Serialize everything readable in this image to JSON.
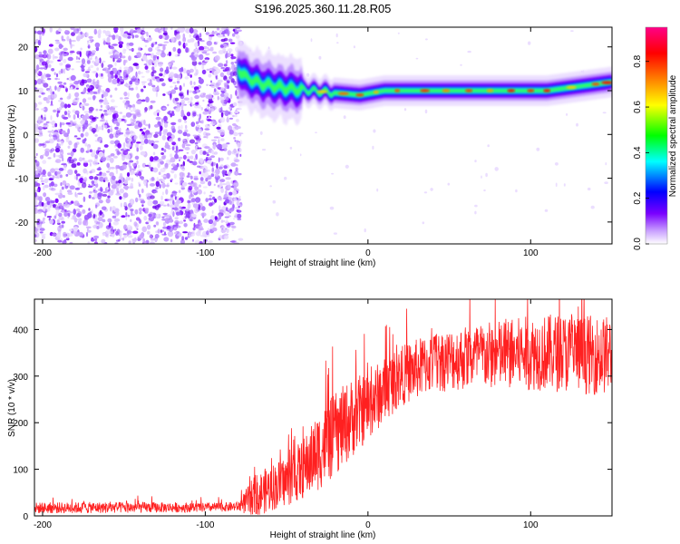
{
  "title": "S196.2025.360.11.28.R05",
  "chart_data": [
    {
      "type": "heatmap",
      "name": "spectrogram",
      "xlabel": "Height of straight line (km)",
      "ylabel": "Frequency (Hz)",
      "xlim": [
        -205,
        150
      ],
      "ylim": [
        -25,
        24.5
      ],
      "xticks": [
        -200,
        -100,
        0,
        100
      ],
      "xtick_labels": [
        "-200",
        "-100",
        "0",
        "100"
      ],
      "yticks": [
        20,
        10,
        0,
        -10,
        -20
      ],
      "ytick_labels": [
        "20",
        "10",
        "0",
        "-10",
        "-20"
      ],
      "noise_region": {
        "x_range": [
          -205,
          -78
        ],
        "description_values": "broadband low amplitude noise"
      },
      "signal_track": [
        {
          "x": -80,
          "f": 15
        },
        {
          "x": -75,
          "f": 13
        },
        {
          "x": -65,
          "f": 11.5
        },
        {
          "x": -50,
          "f": 10.5
        },
        {
          "x": -35,
          "f": 10
        },
        {
          "x": -20,
          "f": 9.5
        },
        {
          "x": -5,
          "f": 9
        },
        {
          "x": 10,
          "f": 10
        },
        {
          "x": 40,
          "f": 10
        },
        {
          "x": 80,
          "f": 10
        },
        {
          "x": 110,
          "f": 10
        },
        {
          "x": 130,
          "f": 11
        },
        {
          "x": 150,
          "f": 12
        }
      ],
      "colorbar": {
        "label": "Normalized spectral amplitude",
        "range": [
          0.0,
          0.95
        ],
        "ticks": [
          0.0,
          0.2,
          0.4,
          0.6,
          0.8
        ],
        "tick_labels": [
          "0.0",
          "0.2",
          "0.4",
          "0.6",
          "0.8"
        ],
        "colors": [
          "#ffffff",
          "#7a00ff",
          "#0000ff",
          "#00ffff",
          "#00ff00",
          "#ffff00",
          "#ff8000",
          "#ff0000",
          "#ff0080"
        ]
      }
    },
    {
      "type": "line",
      "name": "snr",
      "xlabel": "Height of straight line (km)",
      "ylabel": "SNR (10 * v/v)",
      "xlim": [
        -205,
        150
      ],
      "ylim": [
        0,
        465
      ],
      "xticks": [
        -200,
        -100,
        0,
        100
      ],
      "xtick_labels": [
        "-200",
        "-100",
        "0",
        "100"
      ],
      "yticks": [
        0,
        100,
        200,
        300,
        400
      ],
      "ytick_labels": [
        "0",
        "100",
        "200",
        "300",
        "400"
      ],
      "color": "#ff2020",
      "series": [
        {
          "name": "SNR",
          "envelope_x": [
            -205,
            -150,
            -100,
            -80,
            -70,
            -60,
            -50,
            -40,
            -30,
            -20,
            -10,
            0,
            10,
            20,
            30,
            40,
            60,
            80,
            100,
            120,
            140,
            150
          ],
          "envelope_mean": [
            17,
            18,
            18,
            20,
            40,
            60,
            75,
            100,
            140,
            175,
            210,
            235,
            270,
            300,
            315,
            330,
            340,
            345,
            350,
            350,
            345,
            345
          ],
          "envelope_spread": [
            12,
            12,
            10,
            10,
            45,
            50,
            55,
            65,
            85,
            90,
            85,
            75,
            70,
            65,
            65,
            65,
            70,
            75,
            80,
            85,
            85,
            85
          ]
        }
      ]
    }
  ]
}
